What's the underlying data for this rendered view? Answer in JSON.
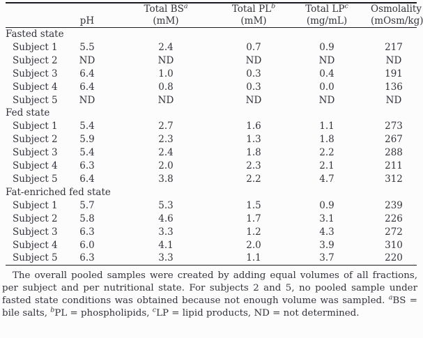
{
  "page": {
    "background_color": "#fcfcfc",
    "text_color": "#32333b",
    "rule_color": "#1b1b1f"
  },
  "table": {
    "columns": [
      {
        "line1": "",
        "sup": "",
        "line2": ""
      },
      {
        "line1": "",
        "sup": "",
        "line2": "pH"
      },
      {
        "line1": "Total BS",
        "sup": "a",
        "line2": "(mM)"
      },
      {
        "line1": "Total PL",
        "sup": "b",
        "line2": "(mM)"
      },
      {
        "line1": "Total LP",
        "sup": "c",
        "line2": "(mg/mL)"
      },
      {
        "line1": "Osmolality",
        "sup": "",
        "line2": "(mOsm/kg)"
      }
    ],
    "groups": [
      {
        "label": "Fasted state",
        "rows": [
          {
            "label": "Subject 1",
            "values": [
              "5.5",
              "2.4",
              "0.7",
              "0.9",
              "217"
            ]
          },
          {
            "label": "Subject 2",
            "values": [
              "ND",
              "ND",
              "ND",
              "ND",
              "ND"
            ]
          },
          {
            "label": "Subject 3",
            "values": [
              "6.4",
              "1.0",
              "0.3",
              "0.4",
              "191"
            ]
          },
          {
            "label": "Subject 4",
            "values": [
              "6.4",
              "0.8",
              "0.3",
              "0.0",
              "136"
            ]
          },
          {
            "label": "Subject 5",
            "values": [
              "ND",
              "ND",
              "ND",
              "ND",
              "ND"
            ]
          }
        ]
      },
      {
        "label": "Fed state",
        "rows": [
          {
            "label": "Subject 1",
            "values": [
              "5.4",
              "2.7",
              "1.6",
              "1.1",
              "273"
            ]
          },
          {
            "label": "Subject 2",
            "values": [
              "5.9",
              "2.3",
              "1.3",
              "1.8",
              "267"
            ]
          },
          {
            "label": "Subject 3",
            "values": [
              "5.4",
              "2.4",
              "1.8",
              "2.2",
              "288"
            ]
          },
          {
            "label": "Subject 4",
            "values": [
              "6.3",
              "2.0",
              "2.3",
              "2.1",
              "211"
            ]
          },
          {
            "label": "Subject 5",
            "values": [
              "6.4",
              "3.8",
              "2.2",
              "4.7",
              "312"
            ]
          }
        ]
      },
      {
        "label": "Fat-enriched fed state",
        "rows": [
          {
            "label": "Subject 1",
            "values": [
              "5.7",
              "5.3",
              "1.5",
              "0.9",
              "239"
            ]
          },
          {
            "label": "Subject 2",
            "values": [
              "5.8",
              "4.6",
              "1.7",
              "3.1",
              "226"
            ]
          },
          {
            "label": "Subject 3",
            "values": [
              "6.3",
              "3.3",
              "1.2",
              "4.3",
              "272"
            ]
          },
          {
            "label": "Subject 4",
            "values": [
              "6.0",
              "4.1",
              "2.0",
              "3.9",
              "310"
            ]
          },
          {
            "label": "Subject 5",
            "values": [
              "6.3",
              "3.3",
              "1.1",
              "3.7",
              "220"
            ]
          }
        ]
      }
    ]
  },
  "footnote": {
    "segments": [
      {
        "text": "The overall pooled samples were created by adding equal volumes of all fractions, per subject and per nutritional state. For subjects 2 and 5, no pooled sample under fasted state conditions was obtained because not enough volume was sampled. "
      },
      {
        "sup": "a"
      },
      {
        "text": "BS = bile salts, "
      },
      {
        "sup": "b"
      },
      {
        "text": "PL = phospholipids, "
      },
      {
        "sup": "c"
      },
      {
        "text": "LP = lipid products, ND = not determined."
      }
    ]
  }
}
